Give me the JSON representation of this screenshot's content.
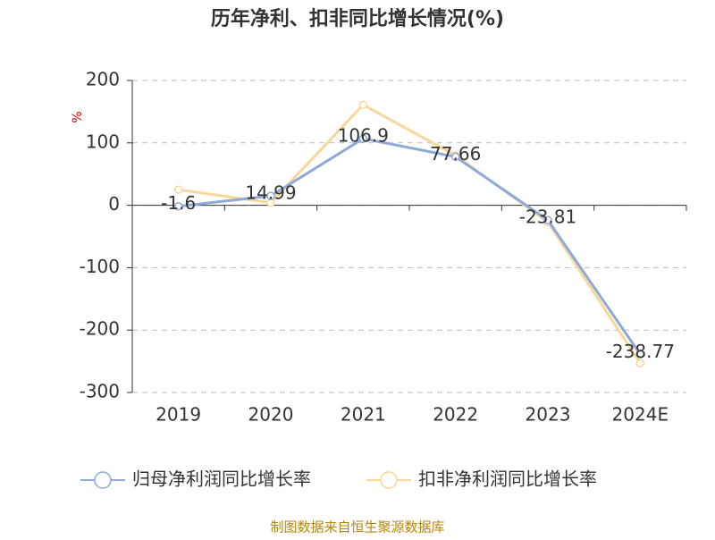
{
  "chart_data": {
    "type": "line",
    "title": "历年净利、扣非同比增长情况(%)",
    "ylabel": "%",
    "categories": [
      "2019",
      "2020",
      "2021",
      "2022",
      "2023",
      "2024E"
    ],
    "series": [
      {
        "name": "归母净利润同比增长率",
        "color": "#8eaad8",
        "values": [
          -1.6,
          14.99,
          106.9,
          77.66,
          -23.81,
          -238.77
        ]
      },
      {
        "name": "扣非净利润同比增长率",
        "color": "#f8d79a",
        "values": [
          25,
          4,
          161,
          80,
          -27,
          -253
        ]
      }
    ],
    "ylim": [
      -300,
      200
    ],
    "yticks": [
      -300,
      -200,
      -100,
      0,
      100,
      200
    ],
    "grid": true,
    "source": "制图数据来自恒生聚源数据库"
  }
}
